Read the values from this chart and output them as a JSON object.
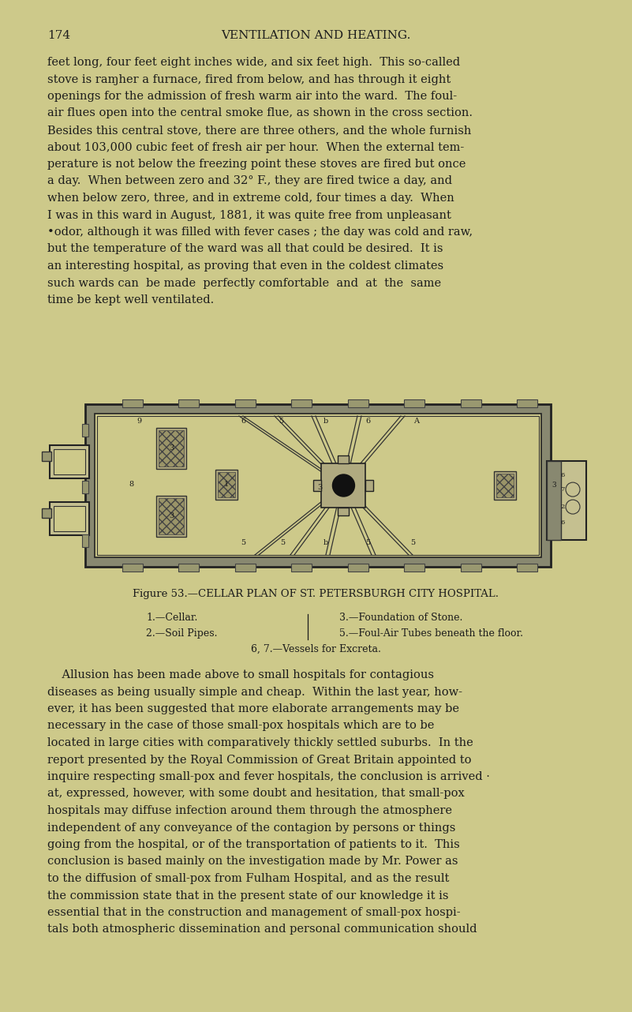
{
  "bg_color": "#cdc98a",
  "text_color": "#1c1c1c",
  "page_number": "174",
  "header": "VENTILATION AND HEATING.",
  "paragraph1_lines": [
    "feet long, four feet eight inches wide, and six feet high.  This so-called",
    "stove is raɱher a furnace, fired from below, and has through it eight",
    "openings for the admission of fresh warm air into the ward.  The foul-",
    "air flues open into the central smoke flue, as shown in the cross section.",
    "Besides this central stove, there are three others, and the whole furnish",
    "about 103,000 cubic feet of fresh air per hour.  When the external tem-",
    "perature is not below the freezing point these stoves are fired but once",
    "a day.  When between zero and 32° F., they are fired twice a day, and",
    "when below zero, three, and in extreme cold, four times a day.  When",
    "I was in this ward in August, 1881, it was quite free from unpleasant",
    "•odor, although it was filled with fever cases ; the day was cold and raw,",
    "but the temperature of the ward was all that could be desired.  It is",
    "an interesting hospital, as proving that even in the coldest climates",
    "such wards can  be made  perfectly comfortable  and  at  the  same",
    "time be kept well ventilated."
  ],
  "figure_caption": "Figure 53.—CELLAR PLAN OF ST. PETERSBURGH CITY HOSPITAL.",
  "legend_left1": "1.—Cellar.",
  "legend_left2": "2.—Soil Pipes.",
  "legend_right1": "3.—Foundation of Stone.",
  "legend_right2": "5.—Foul-Air Tubes beneath the floor.",
  "legend_center": "6, 7.—Vessels for Excreta.",
  "paragraph2_lines": [
    "    Allusion has been made above to small hospitals for contagious",
    "diseases as being usually simple and cheap.  Within the last year, how-",
    "ever, it has been suggested that more elaborate arrangements may be",
    "necessary in the case of those small-pox hospitals which are to be",
    "located in large cities with comparatively thickly settled suburbs.  In the",
    "report presented by the Royal Commission of Great Britain appointed to",
    "inquire respecting small-pox and fever hospitals, the conclusion is arrived ·",
    "at, expressed, however, with some doubt and hesitation, that small-pox",
    "hospitals may diffuse infection around them through the atmosphere",
    "independent of any conveyance of the contagion by persons or things",
    "going from the hospital, or of the transportation of patients to it.  This",
    "conclusion is based mainly on the investigation made by Mr. Power as",
    "to the diffusion of small-pox from Fulham Hospital, and as the result",
    "the commission state that in the present state of our knowledge it is",
    "essential that in the construction and management of small-pox hospi-",
    "tals both atmospheric dissemination and personal communication should"
  ]
}
